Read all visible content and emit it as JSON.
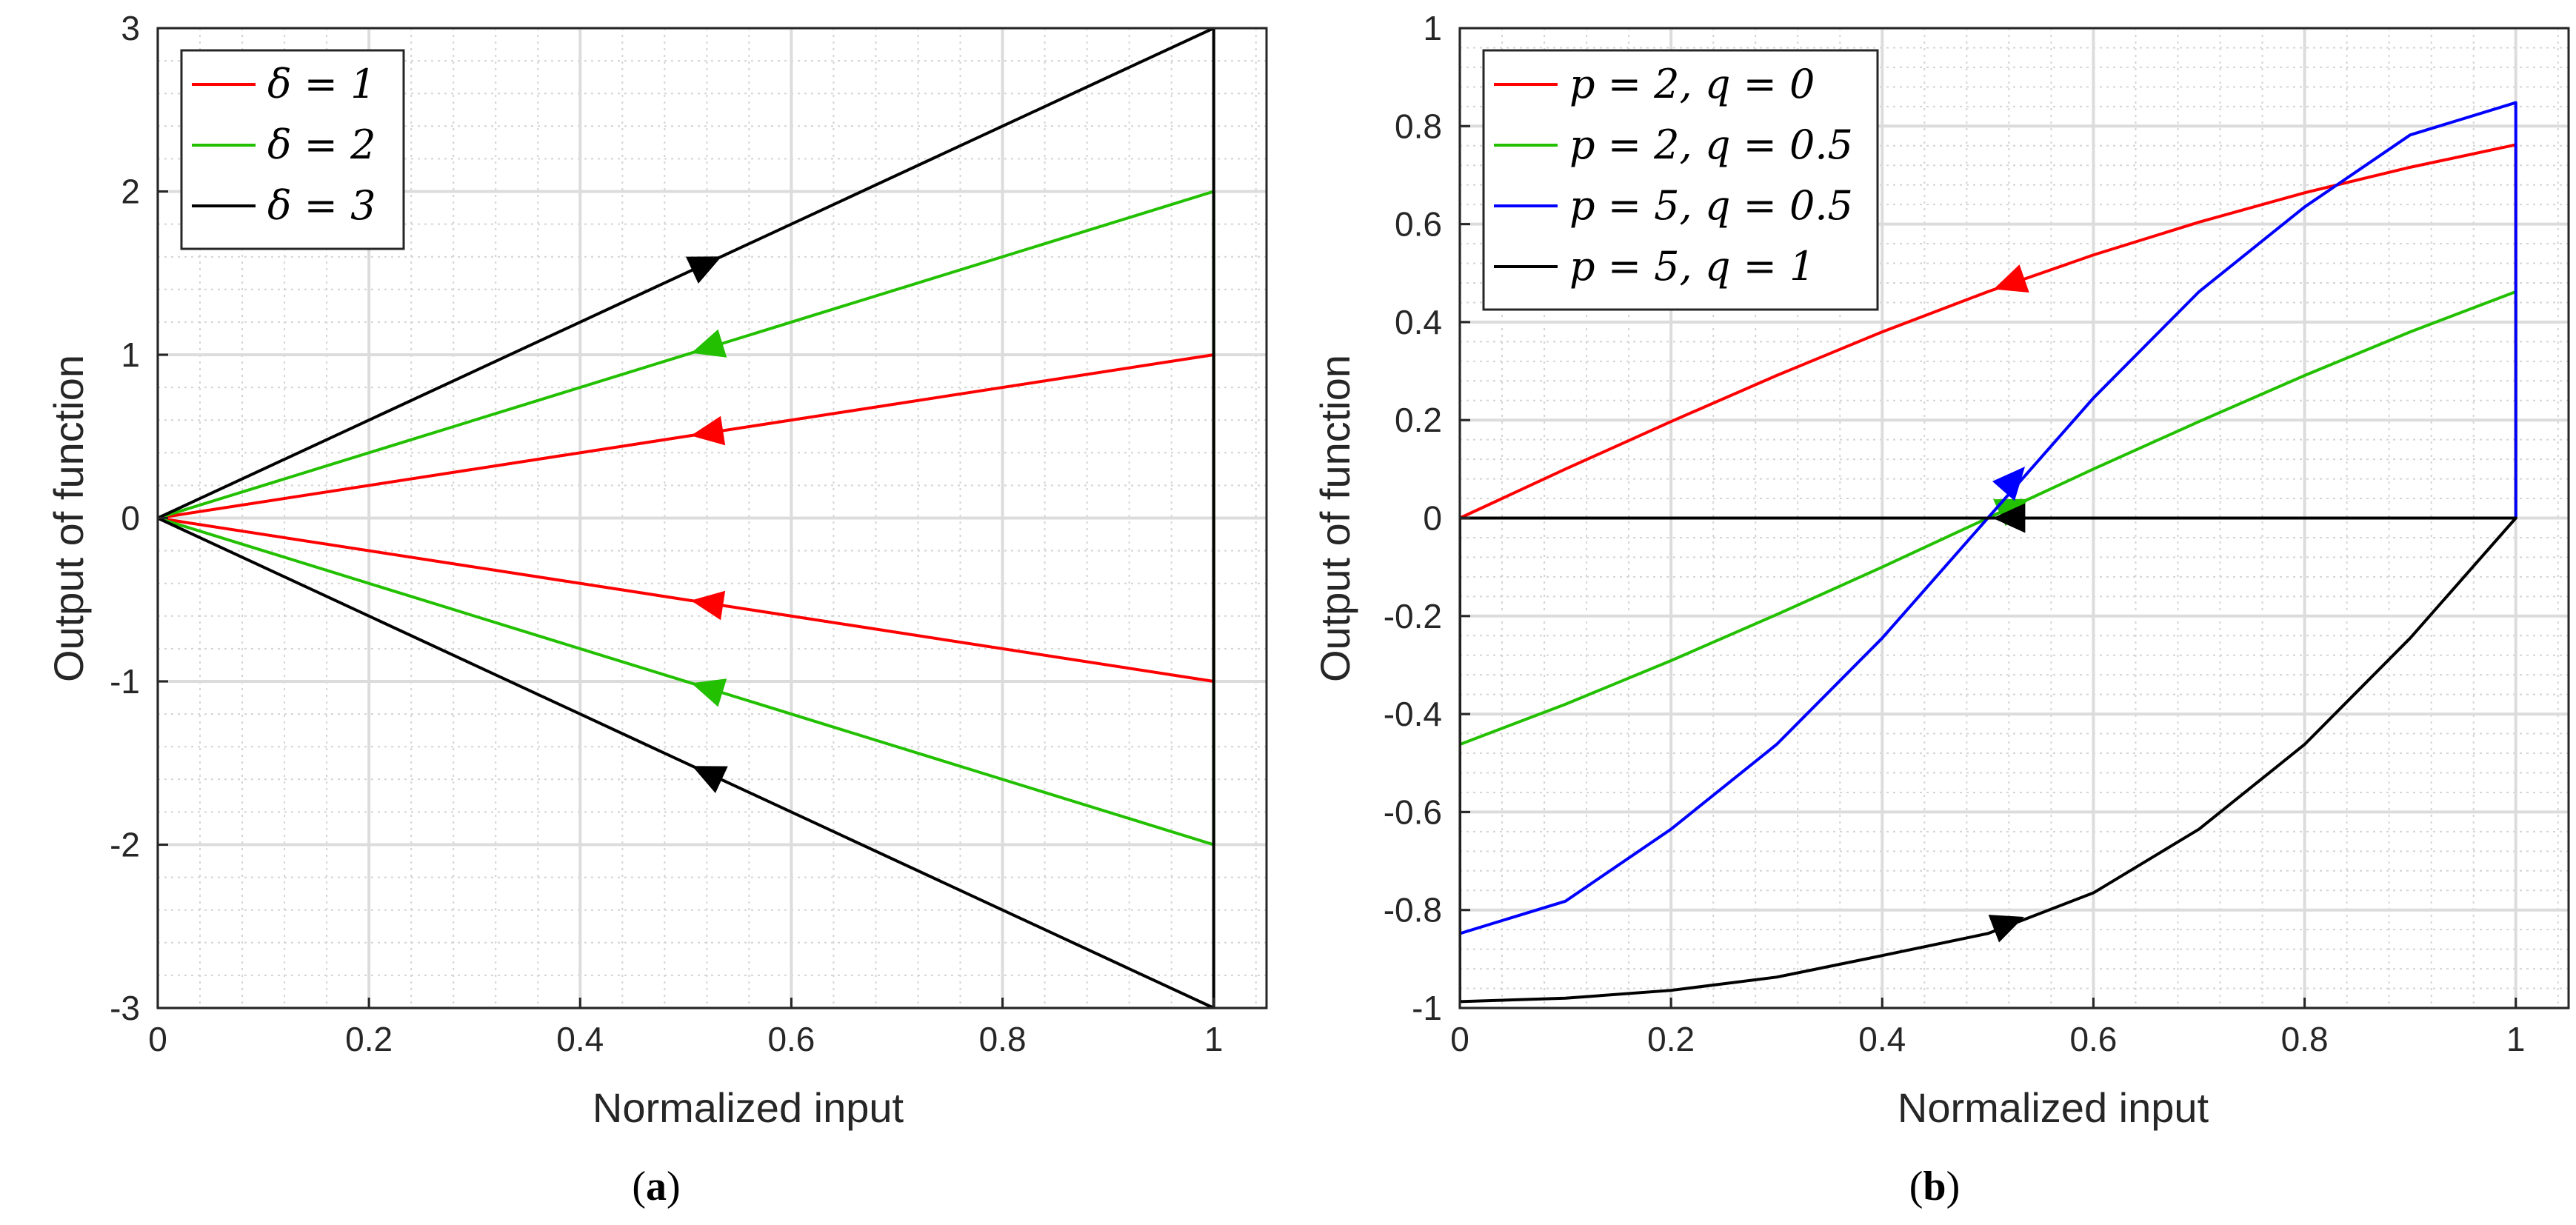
{
  "chart_data": [
    {
      "type": "line",
      "panel": "a",
      "caption_letter": "a",
      "xlabel": "Normalized input",
      "ylabel": "Output of function",
      "xlim": [
        0,
        1.05
      ],
      "ylim": [
        -3,
        3
      ],
      "xticks": [
        0,
        0.2,
        0.4,
        0.6,
        0.8,
        1
      ],
      "xtick_labels": [
        "0",
        "0.2",
        "0.4",
        "0.6",
        "0.8",
        "1"
      ],
      "yticks": [
        -3,
        -2,
        -1,
        0,
        1,
        2,
        3
      ],
      "ytick_labels": [
        "-3",
        "-2",
        "-1",
        "0",
        "1",
        "2",
        "3"
      ],
      "grid": true,
      "minor_grid": true,
      "legend_position": "top-left",
      "series": [
        {
          "name": "δ = 1",
          "color": "#ff0000",
          "x": [
            0,
            1,
            1,
            0
          ],
          "y": [
            0,
            1,
            -1,
            0
          ],
          "arrows": [
            {
              "x": 0.52,
              "y": 0.52,
              "dir": "backward"
            },
            {
              "x": 0.52,
              "y": -0.52,
              "dir": "backward"
            }
          ]
        },
        {
          "name": "δ = 2",
          "color": "#22c000",
          "x": [
            0,
            1,
            1,
            0
          ],
          "y": [
            0,
            2,
            -2,
            0
          ],
          "arrows": [
            {
              "x": 0.52,
              "y": 1.04,
              "dir": "backward"
            },
            {
              "x": 0.52,
              "y": -1.04,
              "dir": "backward"
            }
          ]
        },
        {
          "name": "δ = 3",
          "color": "#000000",
          "x": [
            0,
            1,
            1,
            0
          ],
          "y": [
            0,
            3,
            -3,
            0
          ],
          "arrows": [
            {
              "x": 0.52,
              "y": 1.56,
              "dir": "forward"
            },
            {
              "x": 0.52,
              "y": -1.56,
              "dir": "backward"
            }
          ]
        }
      ]
    },
    {
      "type": "line",
      "panel": "b",
      "caption_letter": "b",
      "xlabel": "Normalized input",
      "ylabel": "Output of function",
      "xlim": [
        0,
        1.05
      ],
      "ylim": [
        -1,
        1
      ],
      "xticks": [
        0,
        0.2,
        0.4,
        0.6,
        0.8,
        1
      ],
      "xtick_labels": [
        "0",
        "0.2",
        "0.4",
        "0.6",
        "0.8",
        "1"
      ],
      "yticks": [
        -1,
        -0.8,
        -0.6,
        -0.4,
        -0.2,
        0,
        0.2,
        0.4,
        0.6,
        0.8,
        1
      ],
      "ytick_labels": [
        "-1",
        "-0.8",
        "-0.6",
        "-0.4",
        "-0.2",
        "0",
        "0.2",
        "0.4",
        "0.6",
        "0.8",
        "1"
      ],
      "grid": true,
      "minor_grid": true,
      "legend_position": "top-left",
      "series": [
        {
          "name": "p = 2, q = 0",
          "color": "#ff0000",
          "x": [
            0,
            0.1,
            0.2,
            0.3,
            0.4,
            0.5,
            0.6,
            0.7,
            0.8,
            0.9,
            1,
            1,
            0
          ],
          "y": [
            0,
            0.1,
            0.197,
            0.291,
            0.38,
            0.462,
            0.537,
            0.604,
            0.664,
            0.716,
            0.762,
            0,
            0
          ],
          "arrows": [
            {
              "x": 0.52,
              "y": 0.478,
              "dir": "backward"
            }
          ]
        },
        {
          "name": "p = 2, q = 0.5",
          "color": "#22c000",
          "x": [
            0,
            0,
            0.1,
            0.2,
            0.3,
            0.4,
            0.5,
            0.6,
            0.7,
            0.8,
            0.9,
            1,
            1
          ],
          "y": [
            0,
            -0.462,
            -0.38,
            -0.291,
            -0.197,
            -0.1,
            0,
            0.1,
            0.197,
            0.291,
            0.38,
            0.462,
            0
          ],
          "arrows": [
            {
              "x": 0.525,
              "y": 0.025,
              "dir": "forward"
            }
          ]
        },
        {
          "name": "p = 5, q = 0.5",
          "color": "#0000ff",
          "x": [
            0,
            0,
            0.1,
            0.2,
            0.3,
            0.4,
            0.5,
            0.6,
            0.7,
            0.8,
            0.9,
            1,
            1
          ],
          "y": [
            0,
            -0.848,
            -0.782,
            -0.635,
            -0.462,
            -0.245,
            0,
            0.245,
            0.462,
            0.635,
            0.782,
            0.848,
            0
          ],
          "arrows": [
            {
              "x": 0.525,
              "y": 0.08,
              "dir": "forward"
            }
          ]
        },
        {
          "name": "p = 5, q = 1",
          "color": "#000000",
          "x": [
            0,
            0,
            0.1,
            0.2,
            0.3,
            0.4,
            0.5,
            0.6,
            0.7,
            0.8,
            0.9,
            1,
            1,
            0
          ],
          "y": [
            0,
            -0.987,
            -0.98,
            -0.964,
            -0.937,
            -0.893,
            -0.848,
            -0.765,
            -0.635,
            -0.462,
            -0.245,
            0,
            0,
            0
          ],
          "arrows": [
            {
              "x": 0.52,
              "y": -0.826,
              "dir": "forward"
            },
            {
              "x": 0.52,
              "y": 0,
              "dir": "backward"
            }
          ]
        }
      ]
    }
  ]
}
